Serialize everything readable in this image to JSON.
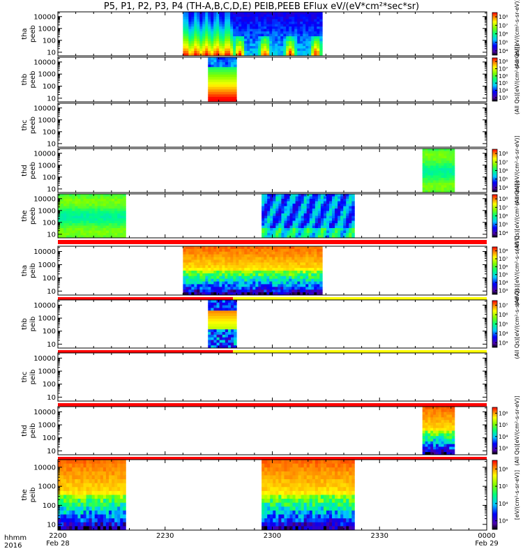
{
  "title": "P5, P1, P2, P3, P4 (TH-A,B,C,D,E) PEIB,PEEB EFlux eV/(eV*cm²*sec*sr)",
  "footer": {
    "row1_label": "hhmm",
    "row2_label": "2016",
    "x_ticks": [
      {
        "t": 0,
        "label": "2200",
        "date": "Feb 28"
      },
      {
        "t": 30,
        "label": "2230",
        "date": ""
      },
      {
        "t": 60,
        "label": "2300",
        "date": ""
      },
      {
        "t": 90,
        "label": "2330",
        "date": ""
      },
      {
        "t": 120,
        "label": "0000",
        "date": "Feb 29"
      }
    ]
  },
  "colors": {
    "flag_red": "#ff0000",
    "flag_yellow": "#ffff00",
    "background": "#ffffff"
  },
  "chart_data": {
    "type": "heatmap",
    "x_units": "minutes after 2016-02-28 22:00 UT",
    "xlim": [
      0,
      120
    ],
    "y_scale": "log",
    "y_ticks": [
      "10000",
      "1000",
      "100",
      "10"
    ],
    "panels": [
      {
        "ylabel": [
          "tha",
          "peeb"
        ],
        "ylim": [
          5,
          25000
        ],
        "colorbar": {
          "min_exp": 4,
          "max_exp": 8,
          "ticks": [
            "10⁸",
            "10⁷",
            "10⁶",
            "10⁵",
            "10⁴"
          ],
          "label": "(All Qs)[eV/(cm²-s-sr-eV)]"
        },
        "segments": [
          {
            "start": 35,
            "end": 49,
            "style": "electron-layered"
          },
          {
            "start": 49,
            "end": 74,
            "style": "electron-bursts"
          }
        ]
      },
      {
        "ylabel": [
          "thb",
          "peeb"
        ],
        "ylim": [
          5,
          25000
        ],
        "colorbar": {
          "min_exp": 3,
          "max_exp": 8,
          "ticks": [
            "10⁸",
            "10⁷",
            "10⁶",
            "10⁵",
            "10⁴",
            "10³"
          ],
          "label": "(All Qs)[eV/(cm²-s-sr-eV)]"
        },
        "segments": [
          {
            "start": 42,
            "end": 50,
            "style": "electron-hot"
          }
        ]
      },
      {
        "ylabel": [
          "thc",
          "peeb"
        ],
        "ylim": [
          5,
          25000
        ],
        "colorbar": null,
        "segments": []
      },
      {
        "ylabel": [
          "thd",
          "peeb"
        ],
        "ylim": [
          5,
          25000
        ],
        "colorbar": {
          "min_exp": 4,
          "max_exp": 8,
          "ticks": [
            "10⁸",
            "10⁷",
            "10⁶",
            "10⁵",
            "10⁴"
          ],
          "label": "(All Qs)[eV/(cm²-s-sr-eV)]"
        },
        "segments": [
          {
            "start": 102,
            "end": 111,
            "style": "electron-green"
          }
        ]
      },
      {
        "ylabel": [
          "the",
          "peeb"
        ],
        "ylim": [
          5,
          25000
        ],
        "colorbar": {
          "min_exp": 4,
          "max_exp": 8,
          "ticks": [
            "10⁸",
            "10⁷",
            "10⁶",
            "10⁵",
            "10⁴"
          ],
          "label": "(All Qs)[eV/(cm²-s-sr-eV)]"
        },
        "segments": [
          {
            "start": 0,
            "end": 19,
            "style": "electron-green"
          },
          {
            "start": 57,
            "end": 83,
            "style": "electron-bursts-blue"
          }
        ],
        "flag_bar": [
          {
            "start": 0,
            "end": 120,
            "color": "red"
          }
        ]
      },
      {
        "ylabel": [
          "tha",
          "peib"
        ],
        "ylim": [
          5,
          25000
        ],
        "colorbar": {
          "min_exp": 3,
          "max_exp": 8,
          "ticks": [
            "10⁸",
            "10⁷",
            "10⁶",
            "10⁵",
            "10⁴",
            "10³"
          ],
          "label": "(All Qs)[eV/(cm²-s-sr-eV)]"
        },
        "segments": [
          {
            "start": 35,
            "end": 74,
            "style": "ion-wide"
          }
        ],
        "flag_bar": [
          {
            "start": 0,
            "end": 49,
            "color": "red"
          },
          {
            "start": 49,
            "end": 120,
            "color": "yellow"
          }
        ]
      },
      {
        "ylabel": [
          "thb",
          "peib"
        ],
        "ylim": [
          5,
          25000
        ],
        "colorbar": {
          "min_exp": 3,
          "max_exp": 7,
          "ticks": [
            "10⁷",
            "10⁶",
            "10⁵",
            "10⁴",
            "10³"
          ],
          "label": "(All Qs)[eV/(cm²-s-sr-eV)]"
        },
        "segments": [
          {
            "start": 42,
            "end": 50,
            "style": "ion-band"
          }
        ],
        "flag_bar": [
          {
            "start": 0,
            "end": 49,
            "color": "red"
          },
          {
            "start": 49,
            "end": 120,
            "color": "yellow"
          }
        ]
      },
      {
        "ylabel": [
          "thc",
          "peib"
        ],
        "ylim": [
          5,
          25000
        ],
        "colorbar": null,
        "segments": [],
        "flag_bar": [
          {
            "start": 0,
            "end": 120,
            "color": "red"
          }
        ]
      },
      {
        "ylabel": [
          "thd",
          "peib"
        ],
        "ylim": [
          5,
          25000
        ],
        "colorbar": {
          "min_exp": 3,
          "max_exp": 6,
          "ticks": [
            "10⁶",
            "10⁵",
            "10⁴",
            "10³"
          ],
          "label": "(All Qs)[eV/(cm²-s-sr-eV)]"
        },
        "segments": [
          {
            "start": 102,
            "end": 111,
            "style": "ion-wide"
          }
        ],
        "flag_bar": [
          {
            "start": 0,
            "end": 120,
            "color": "red"
          }
        ]
      },
      {
        "ylabel": [
          "the",
          "peib"
        ],
        "ylim": [
          5,
          25000
        ],
        "colorbar": {
          "min_exp": 3,
          "max_exp": 6,
          "ticks": [
            "10⁶",
            "10⁵",
            "10⁴",
            "10³"
          ],
          "label": "[eV/(cm²-s-sr-eV)]"
        },
        "segments": [
          {
            "start": 0,
            "end": 19,
            "style": "ion-wide"
          },
          {
            "start": 57,
            "end": 83,
            "style": "ion-wide"
          }
        ]
      }
    ]
  }
}
